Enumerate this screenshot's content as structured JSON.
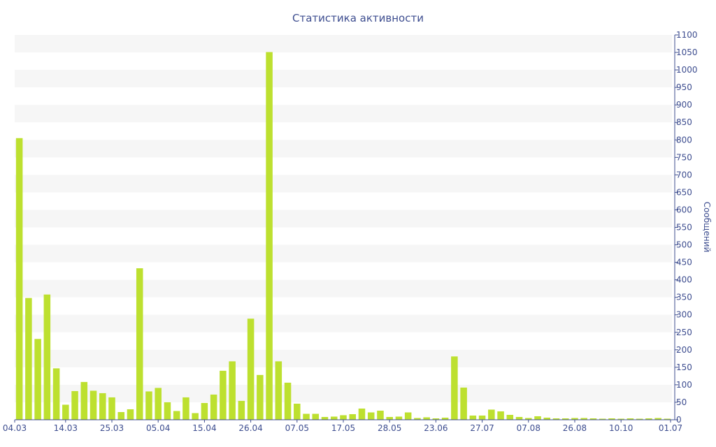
{
  "chart_data": {
    "type": "bar",
    "title": "Статистика активности",
    "ylabel": "Сообщений",
    "xlabel": "",
    "ylim": [
      0,
      1100
    ],
    "yticks": [
      0,
      50,
      100,
      150,
      200,
      250,
      300,
      350,
      400,
      450,
      500,
      550,
      600,
      650,
      700,
      750,
      800,
      850,
      900,
      950,
      1000,
      1050,
      1100
    ],
    "x_tick_labels": [
      "04.03",
      "14.03",
      "25.03",
      "05.04",
      "15.04",
      "26.04",
      "07.05",
      "17.05",
      "28.05",
      "23.06",
      "27.07",
      "07.08",
      "26.08",
      "10.10",
      "01.07"
    ],
    "x_tick_bar_index": [
      0,
      5,
      10,
      15,
      20,
      25,
      30,
      35,
      40,
      45,
      50,
      55,
      60,
      65,
      70
    ],
    "values": [
      805,
      348,
      231,
      358,
      147,
      43,
      82,
      108,
      83,
      76,
      64,
      22,
      30,
      433,
      81,
      91,
      50,
      25,
      64,
      19,
      48,
      72,
      140,
      167,
      54,
      289,
      128,
      1051,
      167,
      106,
      46,
      17,
      17,
      8,
      9,
      13,
      16,
      32,
      21,
      26,
      8,
      9,
      21,
      5,
      7,
      4,
      6,
      181,
      92,
      12,
      12,
      29,
      24,
      14,
      8,
      5,
      10,
      6,
      4,
      4,
      5,
      5,
      4,
      3,
      4,
      3,
      4,
      3,
      4,
      5,
      3
    ],
    "bar_color": "#bde02f",
    "band_color": "#f6f6f6",
    "text_color": "#3d4d8f",
    "axis_position": "right",
    "grid": "horizontal bands"
  }
}
